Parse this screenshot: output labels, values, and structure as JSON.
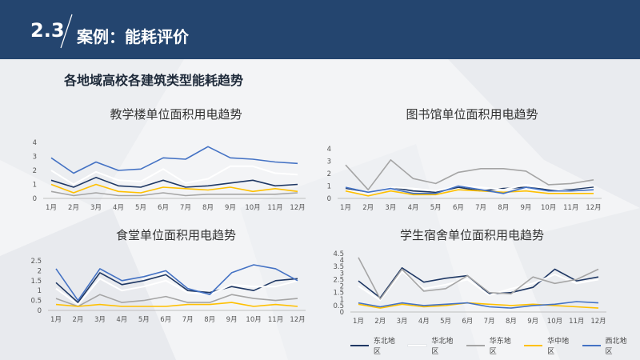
{
  "header": {
    "section_number": "2.3",
    "section_title": "案例：能耗评价"
  },
  "subtitle": "各地域高校各建筑类型能耗趋势",
  "colors": {
    "header_bg": "#24456f",
    "series": [
      "#1f3864",
      "#ffffff",
      "#a5a5a5",
      "#ffc000",
      "#4472c4"
    ]
  },
  "chart_data": [
    {
      "type": "line",
      "title": "教学楼单位面积用电趋势",
      "categories": [
        "1月",
        "2月",
        "3月",
        "4月",
        "5月",
        "6月",
        "7月",
        "8月",
        "9月",
        "10月",
        "11月",
        "12月"
      ],
      "ylim": [
        0,
        4
      ],
      "yticks": [
        0,
        1,
        2,
        3,
        4
      ],
      "series": [
        {
          "name": "东北地区",
          "values": [
            1.3,
            0.8,
            1.5,
            0.9,
            0.8,
            1.3,
            0.8,
            0.9,
            1.1,
            1.3,
            0.9,
            1.0
          ]
        },
        {
          "name": "华北地区",
          "values": [
            2.0,
            1.0,
            1.9,
            1.3,
            1.2,
            2.1,
            1.1,
            1.4,
            2.3,
            2.3,
            1.8,
            1.7
          ]
        },
        {
          "name": "华东地区",
          "values": [
            0.5,
            0.2,
            0.4,
            0.2,
            0.2,
            0.4,
            0.2,
            0.3,
            0.3,
            0.3,
            0.3,
            0.4
          ]
        },
        {
          "name": "华中地区",
          "values": [
            1.0,
            0.4,
            1.0,
            0.5,
            0.4,
            0.8,
            0.7,
            0.6,
            0.8,
            0.5,
            0.7,
            0.5
          ]
        },
        {
          "name": "西北地区",
          "values": [
            2.9,
            1.8,
            2.6,
            2.0,
            2.1,
            2.9,
            2.8,
            3.7,
            2.9,
            2.8,
            2.6,
            2.5
          ]
        }
      ]
    },
    {
      "type": "line",
      "title": "图书馆单位面积用电趋势",
      "categories": [
        "1月",
        "2月",
        "3月",
        "4月",
        "5月",
        "6月",
        "7月",
        "8月",
        "9月",
        "10月",
        "11月",
        "12月"
      ],
      "ylim": [
        0,
        4
      ],
      "yticks": [
        0,
        1,
        2,
        3,
        4
      ],
      "series": [
        {
          "name": "东北地区",
          "values": [
            0.8,
            0.4,
            0.9,
            0.6,
            0.5,
            0.9,
            0.6,
            0.8,
            0.9,
            0.7,
            0.7,
            0.9
          ]
        },
        {
          "name": "华北地区",
          "values": [
            0.7,
            0.4,
            0.9,
            0.8,
            0.6,
            1.0,
            0.9,
            0.7,
            1.1,
            0.8,
            0.6,
            0.8
          ]
        },
        {
          "name": "华东地区",
          "values": [
            2.7,
            0.7,
            3.1,
            1.6,
            1.2,
            2.1,
            2.4,
            2.4,
            2.2,
            1.1,
            1.2,
            1.5
          ]
        },
        {
          "name": "华中地区",
          "values": [
            0.6,
            0.2,
            0.6,
            0.3,
            0.3,
            0.7,
            0.6,
            0.5,
            0.6,
            0.4,
            0.4,
            0.4
          ]
        },
        {
          "name": "西北地区",
          "values": [
            0.9,
            0.5,
            0.8,
            0.4,
            0.4,
            1.0,
            0.7,
            0.4,
            0.9,
            0.6,
            0.6,
            0.7
          ]
        }
      ]
    },
    {
      "type": "line",
      "title": "食堂单位面积用电趋势",
      "categories": [
        "1月",
        "2月",
        "3月",
        "4月",
        "5月",
        "6月",
        "7月",
        "8月",
        "9月",
        "10月",
        "11月",
        "12月"
      ],
      "ylim": [
        0,
        2.5
      ],
      "yticks": [
        0,
        0.5,
        1,
        1.5,
        2,
        2.5
      ],
      "series": [
        {
          "name": "东北地区",
          "values": [
            1.4,
            0.4,
            1.9,
            1.3,
            1.5,
            1.8,
            1.0,
            0.9,
            1.2,
            1.0,
            1.5,
            1.6
          ]
        },
        {
          "name": "华北地区",
          "values": [
            1.1,
            0.3,
            1.6,
            1.0,
            1.2,
            1.5,
            0.9,
            0.8,
            1.3,
            1.2,
            1.2,
            1.5
          ]
        },
        {
          "name": "华东地区",
          "values": [
            0.6,
            0.2,
            0.8,
            0.4,
            0.5,
            0.7,
            0.4,
            0.4,
            0.8,
            0.6,
            0.5,
            0.6
          ]
        },
        {
          "name": "华中地区",
          "values": [
            0.3,
            0.2,
            0.3,
            0.2,
            0.2,
            0.2,
            0.3,
            0.3,
            0.4,
            0.2,
            0.3,
            0.2
          ]
        },
        {
          "name": "西北地区",
          "values": [
            2.1,
            0.5,
            2.1,
            1.5,
            1.7,
            2.0,
            1.1,
            0.8,
            1.9,
            2.3,
            2.1,
            1.5
          ]
        }
      ]
    },
    {
      "type": "line",
      "title": "学生宿舍单位面积用电趋势",
      "categories": [
        "1月",
        "2月",
        "3月",
        "4月",
        "5月",
        "6月",
        "7月",
        "8月",
        "9月",
        "10月",
        "11月",
        "12月"
      ],
      "ylim": [
        0,
        4.5
      ],
      "yticks": [
        0,
        0.5,
        1,
        1.5,
        2,
        2.5,
        3,
        3.5,
        4,
        4.5
      ],
      "series": [
        {
          "name": "东北地区",
          "values": [
            2.4,
            1.1,
            3.4,
            2.3,
            2.6,
            2.8,
            1.4,
            1.5,
            1.9,
            3.3,
            2.4,
            2.7
          ]
        },
        {
          "name": "华北地区",
          "values": [
            2.0,
            0.9,
            3.1,
            1.8,
            2.1,
            2.5,
            1.3,
            1.8,
            2.2,
            2.9,
            2.2,
            2.5
          ]
        },
        {
          "name": "华东地区",
          "values": [
            4.2,
            1.0,
            3.3,
            1.6,
            1.8,
            2.8,
            1.5,
            1.4,
            2.7,
            2.2,
            2.5,
            3.3
          ]
        },
        {
          "name": "华中地区",
          "values": [
            0.6,
            0.3,
            0.6,
            0.4,
            0.5,
            0.7,
            0.6,
            0.5,
            0.6,
            0.5,
            0.4,
            0.3
          ]
        },
        {
          "name": "西北地区",
          "values": [
            0.7,
            0.4,
            0.7,
            0.5,
            0.6,
            0.7,
            0.4,
            0.3,
            0.5,
            0.6,
            0.8,
            0.7
          ]
        }
      ]
    }
  ]
}
